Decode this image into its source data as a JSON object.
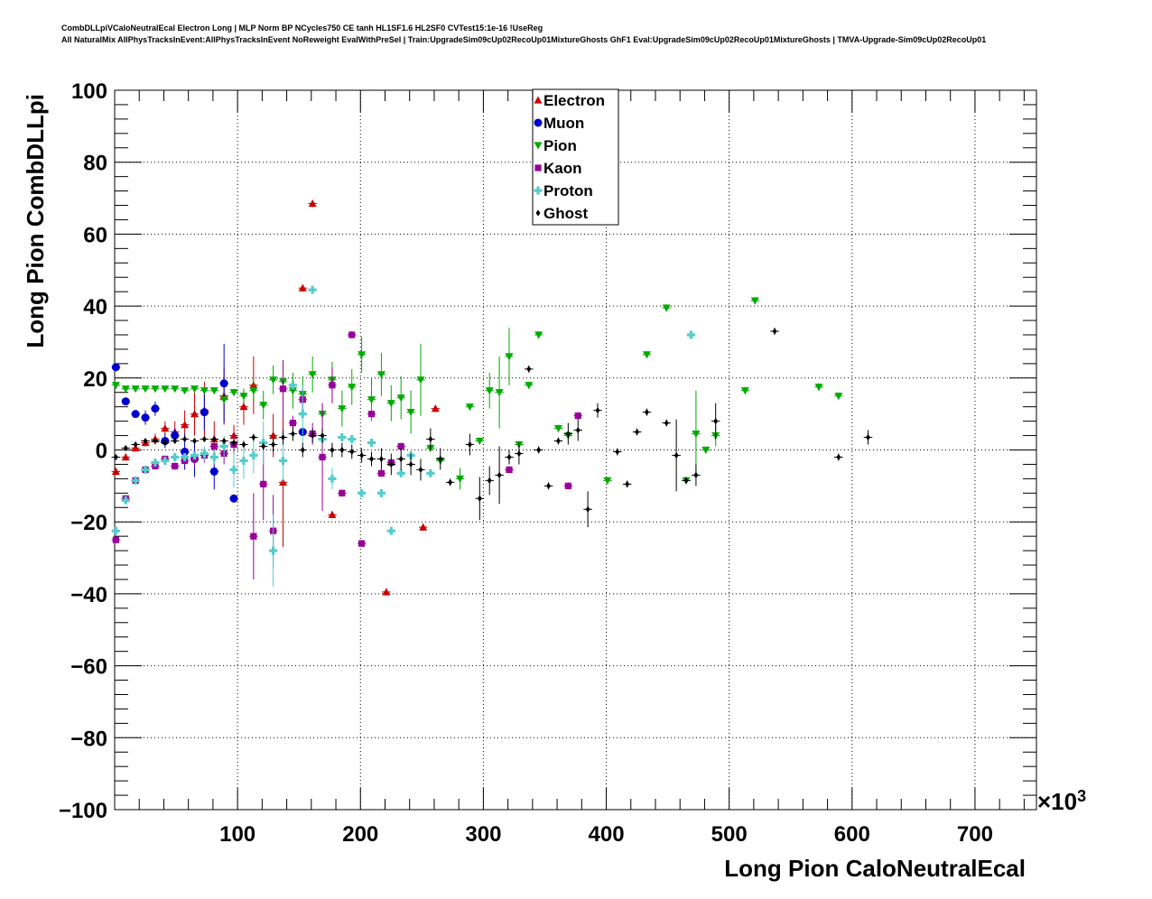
{
  "header": {
    "title_line1": "CombDLLpiVCaloNeutralEcal Electron Long | MLP Norm BP NCycles750 CE tanh HL1SF1.6 HL2SF0 CVTest15:1e-16 !UseReg",
    "title_line2": "All NaturalMix AllPhysTracksInEvent:AllPhysTracksInEvent NoReweight EvalWithPreSel | Train:UpgradeSim09cUp02RecoUp01MixtureGhosts GhF1 Eval:UpgradeSim09cUp02RecoUp01MixtureGhosts | TMVA-Upgrade-Sim09cUp02RecoUp01"
  },
  "chart_data": {
    "type": "scatter",
    "xlabel": "Long Pion CaloNeutralEcal",
    "ylabel": "Long Pion CombDLLpi",
    "x_exponent_label": "×10",
    "x_exponent": "3",
    "xlim": [
      0,
      750
    ],
    "ylim": [
      -100,
      100
    ],
    "x_ticks": [
      100,
      200,
      300,
      400,
      500,
      600,
      700
    ],
    "y_ticks": [
      -100,
      -80,
      -60,
      -40,
      -20,
      0,
      20,
      40,
      60,
      80,
      100
    ],
    "x_tick_labels": [
      "100",
      "200",
      "300",
      "400",
      "500",
      "600",
      "700"
    ],
    "y_tick_labels": [
      "−100",
      "−80",
      "−60",
      "−40",
      "−20",
      "0",
      "20",
      "40",
      "60",
      "80",
      "100"
    ],
    "grid": true,
    "legend_position": "top-center",
    "series": [
      {
        "name": "Electron",
        "color": "#cc0000",
        "marker": "triangle-up",
        "x": [
          1,
          9,
          17,
          25,
          33,
          41,
          49,
          57,
          65,
          73,
          81,
          89,
          97,
          105,
          113,
          129,
          137,
          153,
          161,
          177,
          221,
          251,
          261
        ],
        "y": [
          -6,
          -2,
          0.5,
          2,
          3,
          6,
          5,
          7,
          10,
          11,
          3,
          15,
          4,
          12,
          18,
          4,
          -9,
          45,
          68.5,
          -18,
          -39.5,
          -21.5,
          11.5
        ],
        "err": [
          1,
          1,
          1,
          1,
          1.5,
          2,
          3,
          4,
          6,
          8,
          5,
          8,
          3,
          5,
          8,
          6,
          18,
          1,
          1,
          1,
          1,
          1,
          1
        ]
      },
      {
        "name": "Muon",
        "color": "#0000cc",
        "marker": "circle",
        "x": [
          1,
          9,
          17,
          25,
          33,
          41,
          49,
          57,
          65,
          73,
          81,
          89,
          97,
          153
        ],
        "y": [
          23,
          13.5,
          10,
          9,
          11.5,
          2.5,
          4,
          -0.5,
          -2.5,
          10.5,
          -6,
          18.5,
          -13.5,
          5
        ],
        "err": [
          0.5,
          0.5,
          1,
          2,
          2,
          2,
          2,
          5,
          5,
          5,
          5,
          11,
          1,
          1
        ]
      },
      {
        "name": "Pion",
        "color": "#00aa00",
        "marker": "triangle-down",
        "x": [
          1,
          9,
          17,
          25,
          33,
          41,
          49,
          57,
          65,
          73,
          81,
          89,
          97,
          105,
          113,
          121,
          129,
          137,
          145,
          153,
          161,
          169,
          177,
          185,
          193,
          201,
          209,
          217,
          225,
          233,
          241,
          249,
          257,
          265,
          281,
          289,
          297,
          305,
          313,
          321,
          329,
          337,
          345,
          361,
          369,
          401,
          433,
          449,
          465,
          473,
          481,
          489,
          513,
          521,
          573,
          589
        ],
        "y": [
          18,
          17,
          17,
          17,
          17,
          17,
          17,
          16.5,
          17,
          16.5,
          16.5,
          14,
          16,
          15,
          16.5,
          12.5,
          19.5,
          19,
          16.5,
          15.5,
          21,
          10,
          19.5,
          11.5,
          17.5,
          26.5,
          14,
          21,
          13,
          14.5,
          10.5,
          19.5,
          0.5,
          -3,
          -8,
          12,
          2.5,
          16.5,
          16,
          26,
          1.5,
          18,
          32,
          6,
          4,
          -8.5,
          26.5,
          39.5,
          -8.5,
          4.5,
          0,
          4,
          16.5,
          41.5,
          17.5,
          15
        ],
        "err": [
          0.5,
          0.5,
          0.5,
          0.5,
          0.5,
          0.5,
          0.5,
          0.5,
          0.5,
          0.5,
          0.5,
          1,
          1,
          2,
          3,
          4,
          4,
          5,
          5,
          5,
          5,
          3,
          5,
          5,
          5,
          5,
          6,
          6,
          5,
          6,
          6,
          10,
          1,
          1,
          3,
          1,
          1,
          5,
          10,
          8,
          1,
          1,
          1,
          1,
          1,
          1,
          1,
          1,
          1,
          12,
          1,
          3,
          1,
          1,
          1,
          1
        ]
      },
      {
        "name": "Kaon",
        "color": "#990099",
        "marker": "square",
        "x": [
          1,
          9,
          17,
          25,
          33,
          41,
          49,
          57,
          65,
          73,
          81,
          89,
          97,
          113,
          121,
          129,
          137,
          145,
          153,
          161,
          169,
          177,
          185,
          193,
          201,
          209,
          217,
          225,
          233,
          321,
          369,
          377
        ],
        "y": [
          -25,
          -13.5,
          -8.5,
          -5.5,
          -4.5,
          -2.5,
          -4.5,
          -3,
          -2.5,
          -1.5,
          1,
          -1,
          1.5,
          -24,
          -9.5,
          -22.5,
          17,
          7.5,
          14,
          4.5,
          -2,
          18,
          -12,
          32,
          -26,
          10,
          -6.5,
          -3.5,
          1,
          -5.5,
          -10,
          9.5
        ],
        "err": [
          0.5,
          0.5,
          0.5,
          0.5,
          0.5,
          0.5,
          1,
          1,
          2,
          2,
          3,
          3,
          3,
          12,
          10,
          10,
          8,
          2,
          3,
          3,
          15,
          5,
          1,
          1,
          1,
          1,
          1,
          1,
          1,
          1,
          1,
          1
        ]
      },
      {
        "name": "Proton",
        "color": "#55cccc",
        "marker": "cross",
        "x": [
          1,
          9,
          17,
          25,
          33,
          41,
          49,
          57,
          65,
          73,
          81,
          89,
          97,
          105,
          113,
          121,
          129,
          137,
          145,
          153,
          161,
          169,
          177,
          185,
          193,
          201,
          209,
          217,
          225,
          233,
          241,
          257,
          469
        ],
        "y": [
          -22.5,
          -14,
          -8.5,
          -5.5,
          -3.5,
          -3,
          -2,
          -2,
          -1.5,
          -1,
          -2,
          1,
          -5.5,
          -3,
          -1.5,
          2,
          -28,
          -3,
          18,
          10,
          44.5,
          3,
          -8,
          3.5,
          3,
          -12,
          2,
          -12,
          -22.5,
          -6.5,
          -1.5,
          -6.5,
          32
        ],
        "err": [
          0.5,
          0.5,
          0.5,
          0.5,
          1,
          1,
          1,
          1,
          1,
          2,
          2,
          3,
          5,
          5,
          5,
          6,
          10,
          6,
          1,
          8,
          1,
          1,
          3,
          1,
          1,
          1,
          1,
          1,
          1,
          1,
          1,
          1,
          1
        ]
      },
      {
        "name": "Ghost",
        "color": "#000000",
        "marker": "diamond",
        "x": [
          1,
          9,
          17,
          25,
          33,
          41,
          49,
          57,
          65,
          73,
          81,
          89,
          97,
          105,
          113,
          121,
          129,
          137,
          145,
          153,
          161,
          169,
          177,
          185,
          193,
          201,
          209,
          217,
          225,
          233,
          241,
          249,
          257,
          265,
          273,
          289,
          297,
          305,
          313,
          321,
          329,
          337,
          345,
          353,
          361,
          369,
          377,
          385,
          393,
          409,
          417,
          425,
          433,
          449,
          457,
          465,
          473,
          489,
          537,
          589,
          613
        ],
        "y": [
          -2,
          0.5,
          1.5,
          2.5,
          2.5,
          2,
          2.5,
          3,
          2.5,
          3,
          3,
          2.5,
          2,
          1.5,
          3.5,
          1,
          1.5,
          3.5,
          4.5,
          0,
          4,
          4,
          0,
          0,
          -0.5,
          -1.5,
          -2.5,
          -2.5,
          -4,
          -2.5,
          -4,
          -5.5,
          3,
          -2.5,
          -9,
          1.5,
          -13.5,
          -8.5,
          -7,
          -2,
          -1,
          22.5,
          0,
          -10,
          2.5,
          4.5,
          5.5,
          -16.5,
          11,
          -0.5,
          -9.5,
          5,
          10.5,
          7.5,
          -1.5,
          -8.5,
          -7,
          8,
          33,
          -2,
          3.5
        ],
        "err": [
          0.5,
          0.5,
          0.5,
          0.5,
          0.5,
          0.5,
          0.5,
          0.5,
          0.5,
          0.5,
          0.5,
          0.5,
          1,
          1,
          1,
          1,
          2,
          2,
          2,
          2,
          2,
          2,
          2,
          2,
          2,
          2,
          2,
          3,
          3,
          3,
          3,
          3,
          3,
          3,
          1,
          3,
          6,
          4,
          8,
          2,
          3,
          1,
          1,
          1,
          1,
          3,
          3,
          5,
          2,
          1,
          1,
          1,
          1,
          1,
          10,
          1,
          3,
          5,
          1,
          1,
          2
        ]
      }
    ]
  }
}
